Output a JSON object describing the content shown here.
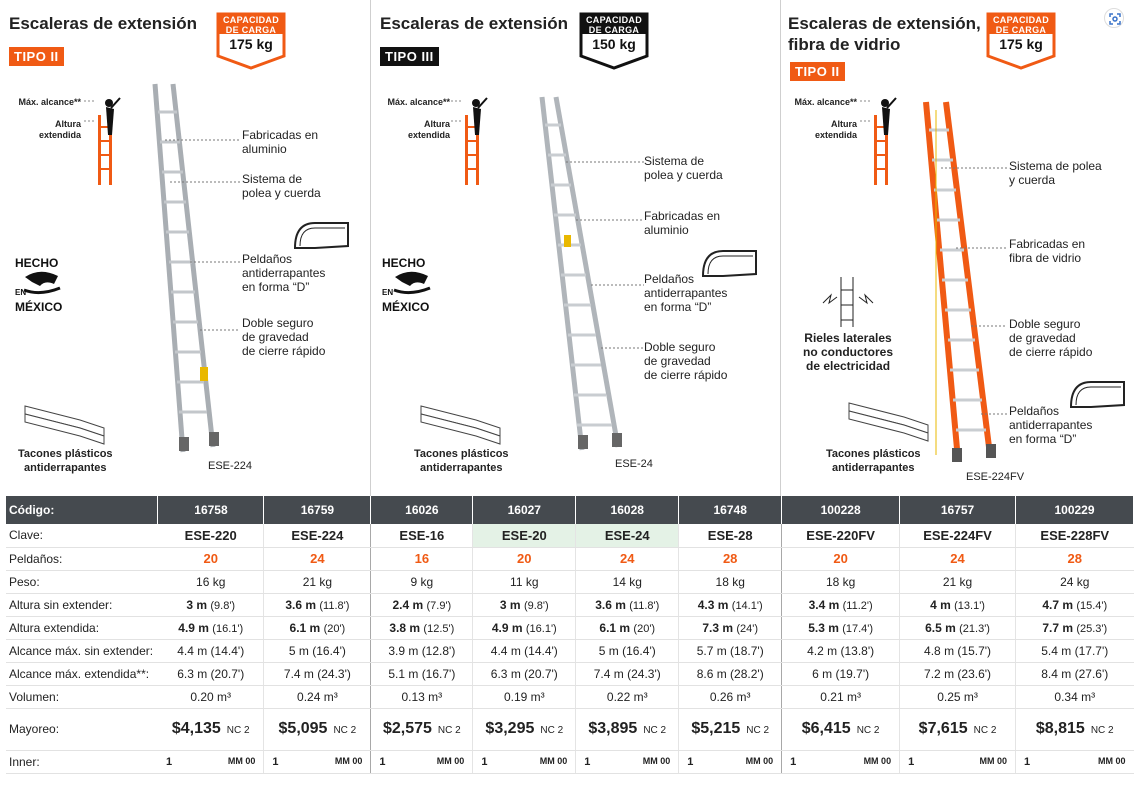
{
  "sections": [
    {
      "title": "Escaleras de extensión",
      "tipo": "TIPO II",
      "cap_label1": "CAPACIDAD",
      "cap_label2": "DE CARGA",
      "cap_value": "175 kg",
      "max_alcance": "Máx. alcance**",
      "altura_ext": "Altura\nextendida",
      "hecho": "HECHO",
      "en": "EN",
      "mexico": "MÉXICO",
      "ann": [
        "Fabricadas en\naluminio",
        "Sistema de\npolea y cuerda",
        "Peldaños\nantiderrapantes\nen forma “D”",
        "Doble seguro\nde gravedad\nde cierre rápido"
      ],
      "tacones": "Tacones plásticos\nantiderrapantes",
      "model": "ESE-224"
    },
    {
      "title": "Escaleras de extensión",
      "tipo": "TIPO III",
      "cap_label1": "CAPACIDAD",
      "cap_label2": "DE CARGA",
      "cap_value": "150 kg",
      "max_alcance": "Máx. alcance**",
      "altura_ext": "Altura\nextendida",
      "hecho": "HECHO",
      "en": "EN",
      "mexico": "MÉXICO",
      "ann": [
        "Sistema de\npolea y cuerda",
        "Fabricadas en\naluminio",
        "Peldaños\nantiderrapantes\nen forma “D”",
        "Doble seguro\nde gravedad\nde cierre rápido"
      ],
      "tacones": "Tacones plásticos\nantiderrapantes",
      "model": "ESE-24"
    },
    {
      "title": "Escaleras de extensión,\nfibra de vidrio",
      "tipo": "TIPO II",
      "cap_label1": "CAPACIDAD",
      "cap_label2": "DE CARGA",
      "cap_value": "175 kg",
      "max_alcance": "Máx. alcance**",
      "altura_ext": "Altura\nextendida",
      "rieles": "Rieles laterales\nno conductores\nde electricidad",
      "ann": [
        "Sistema de polea\ny cuerda",
        "Fabricadas en\nfibra de vidrio",
        "Doble seguro\nde gravedad\nde cierre rápido",
        "Peldaños\nantiderrapantes\nen forma “D”"
      ],
      "tacones": "Tacones plásticos\nantiderrapantes",
      "model": "ESE-224FV"
    }
  ],
  "table": {
    "labels": {
      "codigo": "Código:",
      "clave": "Clave:",
      "peldanos": "Peldaños:",
      "peso": "Peso:",
      "alt_sin": "Altura sin extender:",
      "alt_ext": "Altura extendida:",
      "alc_sin": "Alcance máx. sin extender:",
      "alc_ext": "Alcance máx. extendida**:",
      "volumen": "Volumen:",
      "mayoreo": "Mayoreo:",
      "inner": "Inner:"
    },
    "codigo": [
      "16758",
      "16759",
      "16026",
      "16027",
      "16028",
      "16748",
      "100228",
      "16757",
      "100229"
    ],
    "clave": [
      "ESE-220",
      "ESE-224",
      "ESE-16",
      "ESE-20",
      "ESE-24",
      "ESE-28",
      "ESE-220FV",
      "ESE-224FV",
      "ESE-228FV"
    ],
    "peldanos": [
      "20",
      "24",
      "16",
      "20",
      "24",
      "28",
      "20",
      "24",
      "28"
    ],
    "peso": [
      "16 kg",
      "21 kg",
      "9 kg",
      "11 kg",
      "14 kg",
      "18 kg",
      "18 kg",
      "21 kg",
      "24 kg"
    ],
    "alt_sin_m": [
      "3 m",
      "3.6 m",
      "2.4 m",
      "3 m",
      "3.6 m",
      "4.3 m",
      "3.4 m",
      "4 m",
      "4.7 m"
    ],
    "alt_sin_ft": [
      "(9.8')",
      "(11.8')",
      "(7.9')",
      "(9.8')",
      "(11.8')",
      "(14.1')",
      "(11.2')",
      "(13.1')",
      "(15.4')"
    ],
    "alt_ext_m": [
      "4.9 m",
      "6.1 m",
      "3.8 m",
      "4.9 m",
      "6.1 m",
      "7.3 m",
      "5.3 m",
      "6.5 m",
      "7.7 m"
    ],
    "alt_ext_ft": [
      "(16.1')",
      "(20')",
      "(12.5')",
      "(16.1')",
      "(20')",
      "(24')",
      "(17.4')",
      "(21.3')",
      "(25.3')"
    ],
    "alc_sin": [
      "4.4 m (14.4')",
      "5 m (16.4')",
      "3.9 m (12.8')",
      "4.4 m (14.4')",
      "5 m (16.4')",
      "5.7 m (18.7')",
      "4.2 m (13.8')",
      "4.8 m (15.7')",
      "5.4 m (17.7')"
    ],
    "alc_ext": [
      "6.3 m (20.7')",
      "7.4 m (24.3')",
      "5.1 m (16.7')",
      "6.3 m (20.7')",
      "7.4 m (24.3')",
      "8.6 m (28.2')",
      "6 m (19.7')",
      "7.2 m (23.6')",
      "8.4 m (27.6')"
    ],
    "volumen": [
      "0.20 m³",
      "0.24 m³",
      "0.13 m³",
      "0.19 m³",
      "0.22 m³",
      "0.26 m³",
      "0.21 m³",
      "0.25 m³",
      "0.34 m³"
    ],
    "mayoreo": [
      "$4,135",
      "$5,095",
      "$2,575",
      "$3,295",
      "$3,895",
      "$5,215",
      "$6,415",
      "$7,615",
      "$8,815"
    ],
    "nc": [
      "NC 2",
      "NC 2",
      "NC 2",
      "NC 2",
      "NC 2",
      "NC 2",
      "NC 2",
      "NC 2",
      "NC 2"
    ],
    "inner": [
      "1",
      "1",
      "1",
      "1",
      "1",
      "1",
      "1",
      "1",
      "1"
    ],
    "mm": [
      "MM 00",
      "MM 00",
      "MM 00",
      "MM 00",
      "MM 00",
      "MM 00",
      "MM 00",
      "MM 00",
      "MM 00"
    ]
  },
  "colors": {
    "accent": "#f05a14",
    "header": "#454a4f",
    "highlight": "#e4f2e6"
  },
  "icons": [
    "expand-icon",
    "ladder-icon",
    "person-icon",
    "mexico-eagle-icon",
    "rung-icon",
    "tacon-icon",
    "arrows-icon"
  ]
}
